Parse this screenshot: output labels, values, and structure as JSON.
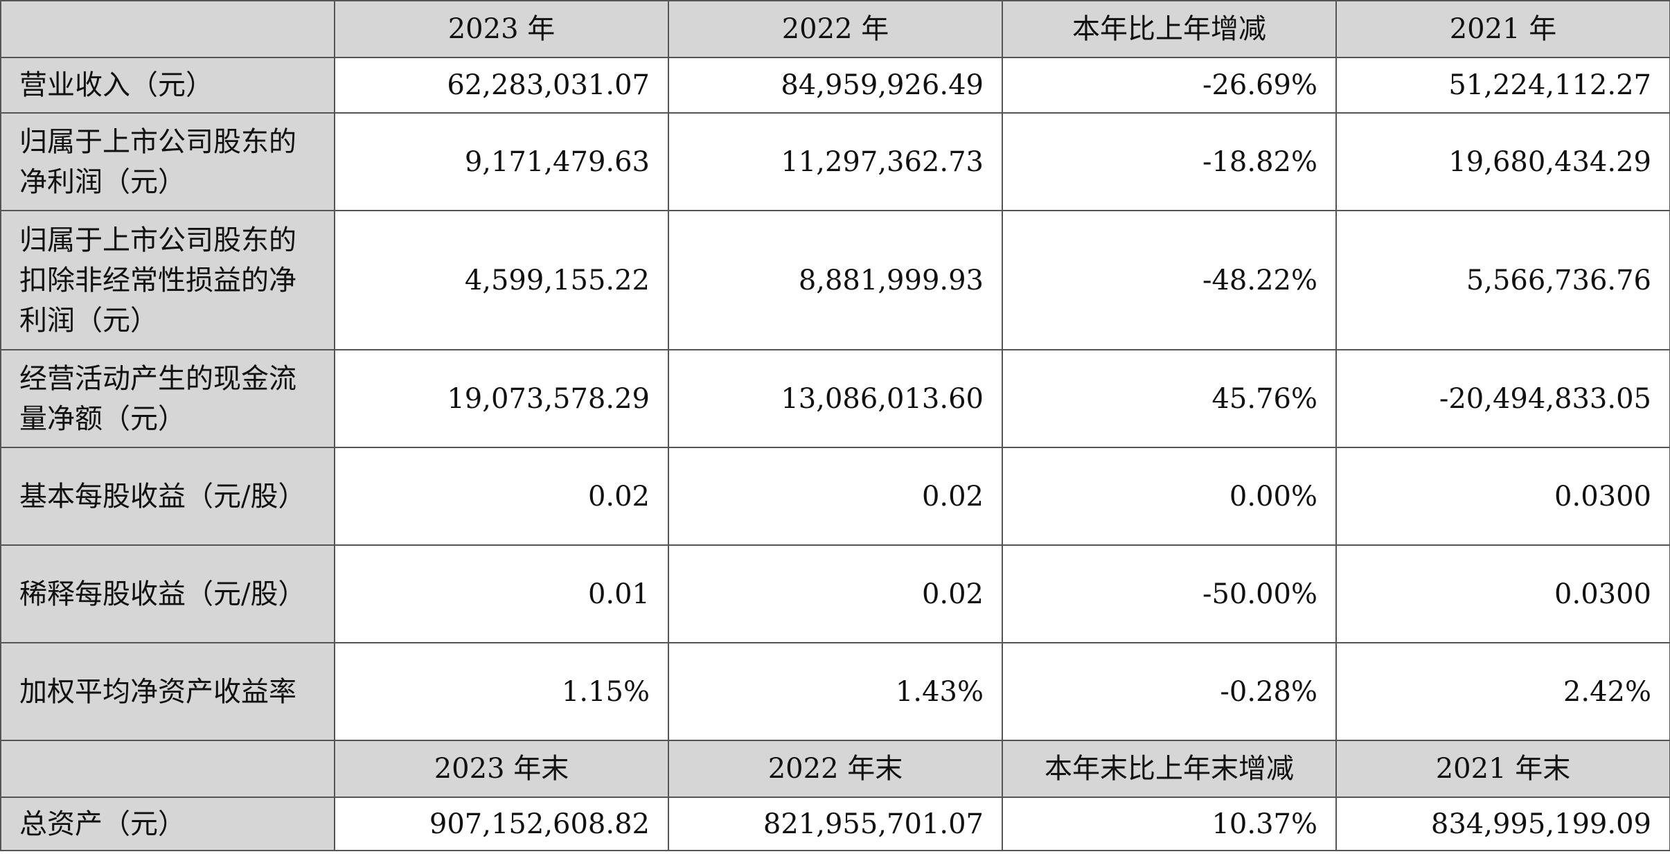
{
  "header1": [
    "",
    "2023 年",
    "2022 年",
    "本年比上年增减",
    "2021 年"
  ],
  "rows1": [
    {
      "label": "营业收入（元）",
      "values": [
        "62,283,031.07",
        "84,959,926.49",
        "-26.69%",
        "51,224,112.27"
      ]
    },
    {
      "label": "归属于上市公司股东的净利润（元）",
      "values": [
        "9,171,479.63",
        "11,297,362.73",
        "-18.82%",
        "19,680,434.29"
      ]
    },
    {
      "label": "归属于上市公司股东的扣除非经常性损益的净利润（元）",
      "values": [
        "4,599,155.22",
        "8,881,999.93",
        "-48.22%",
        "5,566,736.76"
      ]
    },
    {
      "label": "经营活动产生的现金流量净额（元）",
      "values": [
        "19,073,578.29",
        "13,086,013.60",
        "45.76%",
        "-20,494,833.05"
      ]
    },
    {
      "label": "基本每股收益（元/股）",
      "values": [
        "0.02",
        "0.02",
        "0.00%",
        "0.0300"
      ]
    },
    {
      "label": "稀释每股收益（元/股）",
      "values": [
        "0.01",
        "0.02",
        "-50.00%",
        "0.0300"
      ]
    },
    {
      "label": "加权平均净资产收益率",
      "values": [
        "1.15%",
        "1.43%",
        "-0.28%",
        "2.42%"
      ]
    }
  ],
  "header2": [
    "",
    "2023 年末",
    "2022 年末",
    "本年末比上年末增减",
    "2021 年末"
  ],
  "rows2": [
    {
      "label": "总资产（元）",
      "values": [
        "907,152,608.82",
        "821,955,701.07",
        "10.37%",
        "834,995,199.09"
      ]
    }
  ]
}
